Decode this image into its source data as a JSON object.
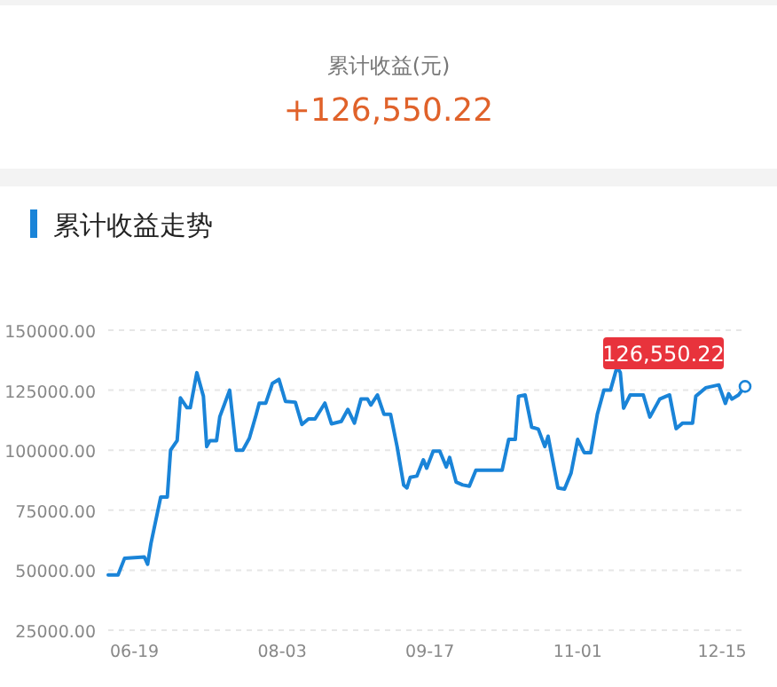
{
  "chart_data": {
    "type": "line",
    "title": "累计收益走势",
    "annotations": [
      "累计收益(元)",
      "+126,550.22",
      {
        "text": "126,550.22",
        "x": "--12-22",
        "y": 126550.22
      }
    ],
    "x": [
      "--06-11",
      "--06-14",
      "--06-16",
      "--06-22",
      "--06-23",
      "--06-24",
      "--06-27",
      "--06-29",
      "--06-30",
      "--07-02",
      "--07-03",
      "--07-05",
      "--07-06",
      "--07-08",
      "--07-10",
      "--07-11",
      "--07-12",
      "--07-14",
      "--07-15",
      "--07-18",
      "--07-20",
      "--07-22",
      "--07-24",
      "--07-26",
      "--07-27",
      "--07-29",
      "--07-31",
      "--08-02",
      "--08-04",
      "--08-07",
      "--08-09",
      "--08-11",
      "--08-13",
      "--08-16",
      "--08-18",
      "--08-21",
      "--08-23",
      "--08-25",
      "--08-27",
      "--08-29",
      "--08-30",
      "--09-01",
      "--09-03",
      "--09-05",
      "--09-07",
      "--09-09",
      "--09-10",
      "--09-11",
      "--09-13",
      "--09-15",
      "--09-16",
      "--09-18",
      "--09-20",
      "--09-22",
      "--09-23",
      "--09-25",
      "--09-27",
      "--09-29",
      "--10-01",
      "--10-09",
      "--10-11",
      "--10-13",
      "--10-14",
      "--10-16",
      "--10-18",
      "--10-20",
      "--10-22",
      "--10-23",
      "--10-26",
      "--10-28",
      "--10-30",
      "--11-01",
      "--11-03",
      "--11-05",
      "--11-07",
      "--11-09",
      "--11-11",
      "--11-13",
      "--11-14",
      "--11-15",
      "--11-17",
      "--11-21",
      "--11-23",
      "--11-26",
      "--11-28",
      "--11-29",
      "--12-01",
      "--12-03",
      "--12-06",
      "--12-07",
      "--12-10",
      "--12-14",
      "--12-16",
      "--12-17",
      "--12-18",
      "--12-20",
      "--12-22"
    ],
    "series": [
      {
        "color": "#1a84d8",
        "values": [
          48000,
          48000,
          55000,
          55500,
          52500,
          61000,
          80500,
          80500,
          100000,
          104000,
          121800,
          117700,
          117700,
          132300,
          122500,
          101500,
          104000,
          104000,
          114000,
          125000,
          100000,
          100000,
          105000,
          114500,
          119600,
          119600,
          127800,
          129500,
          120300,
          120000,
          110700,
          113000,
          113000,
          119600,
          111000,
          112000,
          117000,
          111300,
          121300,
          121300,
          118800,
          123000,
          115000,
          115000,
          101500,
          85500,
          84300,
          88700,
          89200,
          96000,
          92500,
          99600,
          99600,
          93000,
          97000,
          86700,
          85500,
          85000,
          91700,
          91700,
          104500,
          104500,
          122500,
          123000,
          109600,
          108800,
          101500,
          105800,
          84300,
          83800,
          90500,
          104500,
          99000,
          99000,
          115000,
          125000,
          125000,
          134700,
          132300,
          117500,
          123000,
          123000,
          113800,
          121300,
          122500,
          123000,
          109000,
          111300,
          111300,
          122500,
          126000,
          127200,
          119500,
          123500,
          121300,
          123000,
          126550.22
        ]
      }
    ],
    "xlim": [
      "--06-11",
      "--12-22"
    ],
    "xticks": [
      {
        "value": "--06-19",
        "label": "06-19"
      },
      {
        "value": "--08-03",
        "label": "08-03"
      },
      {
        "value": "--09-17",
        "label": "09-17"
      },
      {
        "value": "--11-01",
        "label": "11-01"
      },
      {
        "value": "--12-15",
        "label": "12-15"
      }
    ],
    "ylim": [
      25000,
      150000
    ],
    "yticks": [
      {
        "value": 25000,
        "label": "25000.00"
      },
      {
        "value": 50000,
        "label": "50000.00"
      },
      {
        "value": 75000,
        "label": "75000.00"
      },
      {
        "value": 100000,
        "label": "100000.00"
      },
      {
        "value": 125000,
        "label": "125000.00"
      },
      {
        "value": 150000,
        "label": "150000.00"
      }
    ],
    "grid": "y"
  }
}
